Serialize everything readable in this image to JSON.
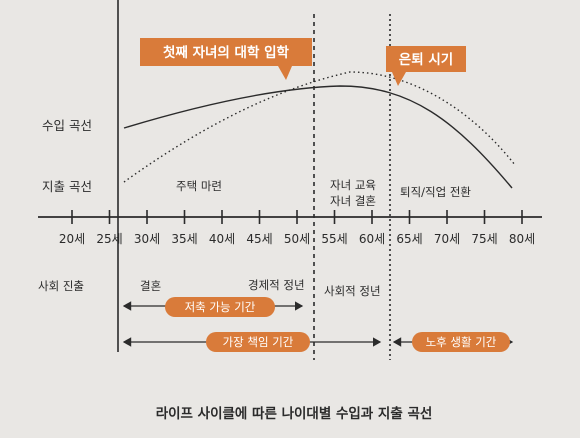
{
  "diagram": {
    "callouts": {
      "first_child_college": "첫째 자녀의 대학 입학",
      "retirement": "은퇴 시기"
    },
    "legend": {
      "income_curve": "수입 곡선",
      "expense_curve": "지출 곡선"
    },
    "annotations": {
      "house_purchase": "주택 마련",
      "child_edu_line1": "자녀 교육",
      "child_edu_line2": "자녀 결혼",
      "retire_career_change": "퇴직/직업 전환"
    },
    "ages": [
      "20세",
      "25세",
      "30세",
      "35세",
      "40세",
      "45세",
      "50세",
      "55세",
      "60세",
      "65세",
      "70세",
      "75세",
      "80세"
    ],
    "life_events": {
      "social_entry": "사회 진출",
      "marriage": "결혼",
      "economic_peak": "경제적 정년",
      "social_retire": "사회적 정년"
    },
    "periods": {
      "savings": "저축 가능 기간",
      "breadwinner": "가장 책임 기간",
      "retirement_life": "노후 생활 기간"
    },
    "caption": "라이프 사이클에 따른 나이대별 수입과 지출 곡선",
    "colors": {
      "accent": "#d97b3a",
      "ink": "#2b2b2b",
      "paper": "#e9e7e4"
    }
  }
}
